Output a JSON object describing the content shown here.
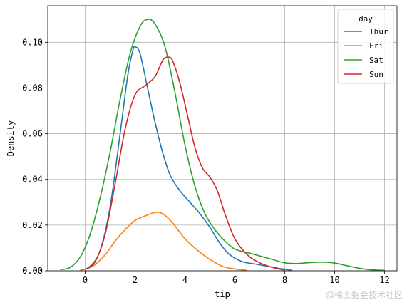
{
  "chart_data": {
    "type": "line",
    "title": "",
    "xlabel": "tip",
    "ylabel": "Density",
    "xlim": [
      -1.5,
      12.5
    ],
    "ylim": [
      0,
      0.116
    ],
    "xticks": [
      0,
      2,
      4,
      6,
      8,
      10,
      12
    ],
    "yticks": [
      0.0,
      0.02,
      0.04,
      0.06,
      0.08,
      0.1
    ],
    "xtick_labels": [
      "0",
      "2",
      "4",
      "6",
      "8",
      "10",
      "12"
    ],
    "ytick_labels": [
      "0.00",
      "0.02",
      "0.04",
      "0.06",
      "0.08",
      "0.10"
    ],
    "grid": true,
    "legend": {
      "title": "day",
      "placement": "top-right"
    },
    "series": [
      {
        "name": "Thur",
        "color": "#1f77b4",
        "points": [
          [
            -0.2,
            0.0002
          ],
          [
            0.2,
            0.002
          ],
          [
            0.6,
            0.009
          ],
          [
            1.0,
            0.028
          ],
          [
            1.4,
            0.06
          ],
          [
            1.7,
            0.085
          ],
          [
            1.9,
            0.096
          ],
          [
            2.0,
            0.098
          ],
          [
            2.2,
            0.095
          ],
          [
            2.5,
            0.08
          ],
          [
            2.8,
            0.065
          ],
          [
            3.1,
            0.052
          ],
          [
            3.4,
            0.042
          ],
          [
            3.8,
            0.035
          ],
          [
            4.2,
            0.03
          ],
          [
            4.6,
            0.025
          ],
          [
            5.0,
            0.019
          ],
          [
            5.4,
            0.012
          ],
          [
            5.8,
            0.007
          ],
          [
            6.3,
            0.004
          ],
          [
            6.8,
            0.003
          ],
          [
            7.3,
            0.002
          ],
          [
            7.8,
            0.001
          ],
          [
            8.3,
            0.0002
          ]
        ]
      },
      {
        "name": "Fri",
        "color": "#ff7f0e",
        "points": [
          [
            -0.2,
            0.0002
          ],
          [
            0.3,
            0.002
          ],
          [
            0.8,
            0.007
          ],
          [
            1.2,
            0.013
          ],
          [
            1.6,
            0.018
          ],
          [
            2.0,
            0.022
          ],
          [
            2.4,
            0.024
          ],
          [
            2.8,
            0.0255
          ],
          [
            3.1,
            0.025
          ],
          [
            3.5,
            0.021
          ],
          [
            4.0,
            0.014
          ],
          [
            4.5,
            0.009
          ],
          [
            5.0,
            0.005
          ],
          [
            5.5,
            0.002
          ],
          [
            6.0,
            0.0008
          ],
          [
            6.5,
            0.0002
          ]
        ]
      },
      {
        "name": "Sat",
        "color": "#2ca02c",
        "points": [
          [
            -1.0,
            0.0005
          ],
          [
            -0.6,
            0.0015
          ],
          [
            -0.2,
            0.006
          ],
          [
            0.2,
            0.016
          ],
          [
            0.6,
            0.032
          ],
          [
            1.0,
            0.052
          ],
          [
            1.4,
            0.075
          ],
          [
            1.8,
            0.095
          ],
          [
            2.2,
            0.107
          ],
          [
            2.5,
            0.11
          ],
          [
            2.8,
            0.108
          ],
          [
            3.2,
            0.098
          ],
          [
            3.6,
            0.078
          ],
          [
            4.0,
            0.055
          ],
          [
            4.4,
            0.037
          ],
          [
            4.8,
            0.025
          ],
          [
            5.2,
            0.018
          ],
          [
            5.6,
            0.013
          ],
          [
            6.0,
            0.0095
          ],
          [
            6.5,
            0.008
          ],
          [
            7.0,
            0.0065
          ],
          [
            7.5,
            0.005
          ],
          [
            8.0,
            0.0035
          ],
          [
            8.5,
            0.0032
          ],
          [
            9.0,
            0.0036
          ],
          [
            9.5,
            0.0038
          ],
          [
            10.0,
            0.0034
          ],
          [
            10.5,
            0.0022
          ],
          [
            11.0,
            0.0011
          ],
          [
            11.5,
            0.0004
          ],
          [
            12.0,
            0.0002
          ]
        ]
      },
      {
        "name": "Sun",
        "color": "#d62728",
        "points": [
          [
            0.0,
            0.0005
          ],
          [
            0.4,
            0.004
          ],
          [
            0.8,
            0.016
          ],
          [
            1.2,
            0.038
          ],
          [
            1.6,
            0.062
          ],
          [
            2.0,
            0.077
          ],
          [
            2.4,
            0.081
          ],
          [
            2.8,
            0.085
          ],
          [
            3.1,
            0.092
          ],
          [
            3.3,
            0.0935
          ],
          [
            3.5,
            0.092
          ],
          [
            3.8,
            0.082
          ],
          [
            4.1,
            0.068
          ],
          [
            4.4,
            0.054
          ],
          [
            4.7,
            0.045
          ],
          [
            5.0,
            0.041
          ],
          [
            5.3,
            0.035
          ],
          [
            5.6,
            0.025
          ],
          [
            6.0,
            0.014
          ],
          [
            6.5,
            0.007
          ],
          [
            7.0,
            0.0035
          ],
          [
            7.5,
            0.0015
          ],
          [
            8.0,
            0.0003
          ]
        ]
      }
    ]
  },
  "watermark": "@稀土掘金技术社区"
}
